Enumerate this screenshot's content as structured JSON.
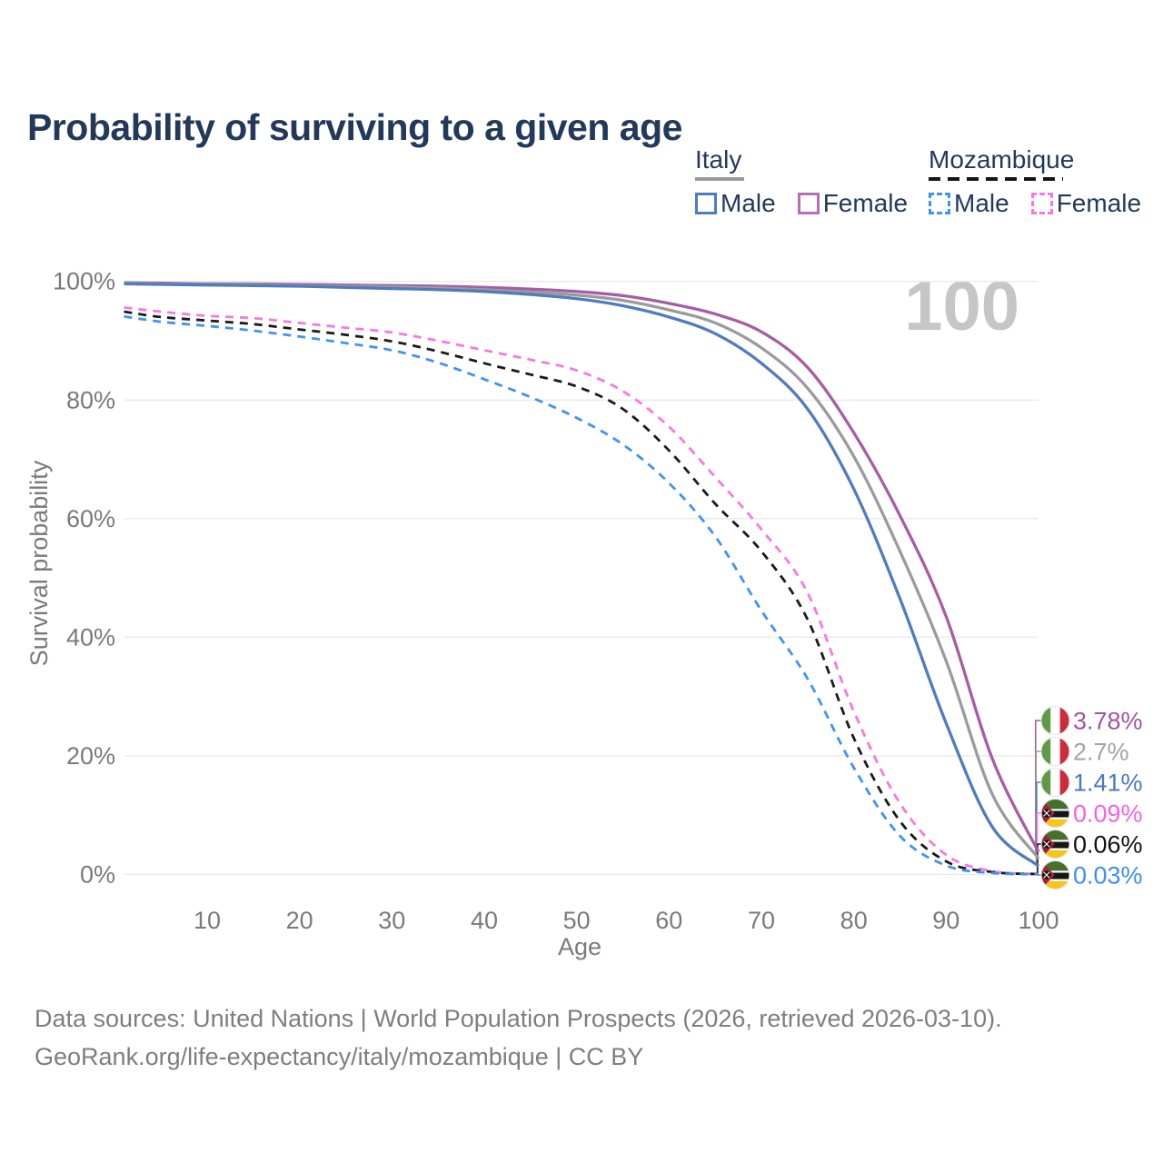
{
  "title": "Probability of surviving to a given age",
  "watermark": "100",
  "legend": {
    "groups": [
      {
        "country": "Italy",
        "line_style": "solid",
        "line_color": "#999999",
        "items": [
          {
            "label": "Male",
            "color": "#4F7CBE",
            "dash": false
          },
          {
            "label": "Female",
            "color": "#B470B0",
            "dash": false
          }
        ]
      },
      {
        "country": "Mozambique",
        "line_style": "dashed",
        "line_color": "#141414",
        "items": [
          {
            "label": "Male",
            "color": "#3E93F5",
            "dash": true
          },
          {
            "label": "Female",
            "color": "#F878E2",
            "dash": true
          }
        ]
      }
    ]
  },
  "axes": {
    "y_label": "Survival probability",
    "x_label": "Age",
    "y_ticks": [
      "100%",
      "80%",
      "60%",
      "40%",
      "20%",
      "0%"
    ],
    "x_ticks": [
      "10",
      "20",
      "30",
      "40",
      "50",
      "60",
      "70",
      "80",
      "90",
      "100"
    ]
  },
  "chart_data": {
    "type": "line",
    "title": "Probability of surviving to a given age",
    "xlabel": "Age",
    "ylabel": "Survival probability",
    "xlim": [
      0,
      100
    ],
    "ylim": [
      0,
      100
    ],
    "grid": "horizontal",
    "legend_position": "top-right",
    "x_tick_values": [
      10,
      20,
      30,
      40,
      50,
      60,
      70,
      80,
      90,
      100
    ],
    "y_tick_values": [
      100,
      80,
      60,
      40,
      20,
      0
    ],
    "ages": [
      1,
      5,
      10,
      15,
      20,
      25,
      30,
      35,
      40,
      45,
      50,
      55,
      60,
      65,
      70,
      75,
      80,
      85,
      90,
      95,
      100
    ],
    "series": [
      {
        "name": "Italy Female",
        "country": "Italy",
        "sex": "Female",
        "color": "#A85CA6",
        "label_color": "#A0549E",
        "dash": false,
        "flag": "italy",
        "end_label": "3.78%",
        "end_value": 3.78,
        "values": [
          99.8,
          99.7,
          99.6,
          99.6,
          99.5,
          99.4,
          99.3,
          99.2,
          99.0,
          98.7,
          98.3,
          97.6,
          96.3,
          94.5,
          91.5,
          85.5,
          74.5,
          60.5,
          43.5,
          19.5,
          3.78
        ]
      },
      {
        "name": "Italy",
        "country": "Italy",
        "sex": "Both",
        "color": "#9B9B9B",
        "label_color": "#A3A3A3",
        "dash": false,
        "flag": "italy",
        "end_label": "2.7%",
        "end_value": 2.7,
        "values": [
          99.7,
          99.6,
          99.5,
          99.5,
          99.3,
          99.2,
          99.1,
          98.9,
          98.6,
          98.2,
          97.7,
          96.8,
          95.2,
          93.0,
          88.8,
          82.0,
          70.5,
          54.5,
          36.0,
          13.5,
          2.7
        ]
      },
      {
        "name": "Italy Male",
        "country": "Italy",
        "sex": "Male",
        "color": "#4F7CBE",
        "label_color": "#4878C5",
        "dash": false,
        "flag": "italy",
        "end_label": "1.41%",
        "end_value": 1.41,
        "values": [
          99.6,
          99.5,
          99.4,
          99.3,
          99.2,
          99.0,
          98.8,
          98.6,
          98.3,
          97.8,
          97.1,
          95.9,
          94.0,
          91.2,
          86.2,
          78.5,
          65.0,
          46.5,
          25.5,
          8.0,
          1.41
        ]
      },
      {
        "name": "Mozambique Female",
        "country": "Mozambique",
        "sex": "Female",
        "color": "#F878E2",
        "label_color": "#F860E2",
        "dash": true,
        "flag": "mozambique",
        "end_label": "0.09%",
        "end_value": 0.09,
        "values": [
          95.6,
          94.9,
          94.2,
          93.8,
          93.0,
          92.2,
          91.4,
          90.0,
          88.4,
          86.8,
          85.0,
          81.5,
          75.5,
          67.0,
          58.2,
          47.5,
          27.5,
          12.0,
          3.3,
          0.55,
          0.09
        ]
      },
      {
        "name": "Mozambique",
        "country": "Mozambique",
        "sex": "Both",
        "color": "#1A1A1A",
        "label_color": "#111111",
        "dash": true,
        "flag": "mozambique",
        "end_label": "0.06%",
        "end_value": 0.06,
        "values": [
          94.9,
          94.0,
          93.4,
          92.8,
          91.9,
          91.0,
          89.9,
          88.2,
          86.2,
          84.3,
          82.3,
          78.5,
          71.5,
          62.5,
          54.5,
          43.0,
          23.0,
          9.0,
          2.2,
          0.4,
          0.06
        ]
      },
      {
        "name": "Mozambique Male",
        "country": "Mozambique",
        "sex": "Male",
        "color": "#3E93F5",
        "label_color": "#3E8EF0",
        "dash": true,
        "flag": "mozambique",
        "end_label": "0.03%",
        "end_value": 0.03,
        "values": [
          94.1,
          93.2,
          92.5,
          91.7,
          90.7,
          89.6,
          88.4,
          86.3,
          83.5,
          80.5,
          77.0,
          72.5,
          66.0,
          57.0,
          44.5,
          33.0,
          18.0,
          6.5,
          1.5,
          0.25,
          0.03
        ]
      }
    ]
  },
  "footer": {
    "line1": "Data sources: United Nations | World Population Prospects (2026, retrieved 2026-03-10).",
    "line2": "GeoRank.org/life-expectancy/italy/mozambique | CC BY"
  }
}
